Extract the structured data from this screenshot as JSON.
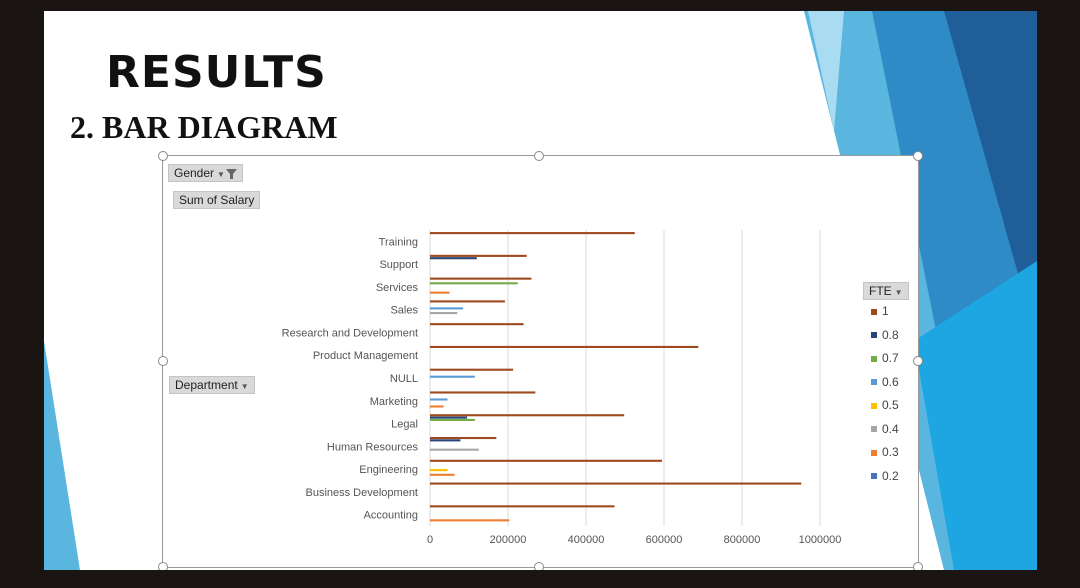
{
  "slide": {
    "title": "RESULTS",
    "subtitle": "2. BAR DIAGRAM"
  },
  "pivot": {
    "gender_filter": "Gender",
    "sum_label": "Sum of Salary",
    "department_field": "Department",
    "fte_field": "FTE",
    "funnel_icon": "filter-funnel-icon",
    "dropdown_icon": "chevron-down-icon"
  },
  "colors": {
    "1": "#9e4a1f",
    "0.8": "#264478",
    "0.7": "#70ad47",
    "0.6": "#5b9bd5",
    "0.5": "#ffc000",
    "0.4": "#a5a5a5",
    "0.3": "#ed7d31",
    "0.2": "#4472c4"
  },
  "chart_data": {
    "type": "bar",
    "orientation": "horizontal",
    "title": "",
    "xlabel": "",
    "ylabel": "",
    "xlim": [
      0,
      1000000
    ],
    "xticks": [
      "0",
      "200000",
      "400000",
      "600000",
      "800000",
      "1000000"
    ],
    "grid": true,
    "legend_title": "FTE",
    "legend_position": "right",
    "categories": [
      "Training",
      "Support",
      "Services",
      "Sales",
      "Research and Development",
      "Product Management",
      "NULL",
      "Marketing",
      "Legal",
      "Human Resources",
      "Engineering",
      "Business Development",
      "Accounting"
    ],
    "series": [
      {
        "name": "1",
        "values": [
          525000,
          248000,
          260000,
          192000,
          240000,
          688000,
          213000,
          270000,
          498000,
          170000,
          595000,
          952000,
          473000
        ]
      },
      {
        "name": "0.8",
        "values": [
          0,
          120000,
          0,
          0,
          0,
          0,
          0,
          0,
          95000,
          78000,
          0,
          0,
          0
        ]
      },
      {
        "name": "0.7",
        "values": [
          0,
          0,
          225000,
          0,
          0,
          0,
          0,
          0,
          115000,
          0,
          0,
          0,
          0
        ]
      },
      {
        "name": "0.6",
        "values": [
          0,
          0,
          0,
          85000,
          0,
          0,
          115000,
          45000,
          0,
          0,
          0,
          0,
          0
        ]
      },
      {
        "name": "0.5",
        "values": [
          0,
          0,
          0,
          0,
          0,
          0,
          0,
          0,
          0,
          0,
          45000,
          0,
          0
        ]
      },
      {
        "name": "0.4",
        "values": [
          0,
          0,
          0,
          70000,
          0,
          0,
          0,
          0,
          0,
          125000,
          0,
          0,
          0
        ]
      },
      {
        "name": "0.3",
        "values": [
          0,
          0,
          50000,
          0,
          0,
          0,
          0,
          35000,
          0,
          0,
          63000,
          0,
          203000
        ]
      },
      {
        "name": "0.2",
        "values": [
          0,
          0,
          0,
          0,
          0,
          0,
          0,
          0,
          0,
          0,
          0,
          0,
          0
        ]
      }
    ]
  }
}
